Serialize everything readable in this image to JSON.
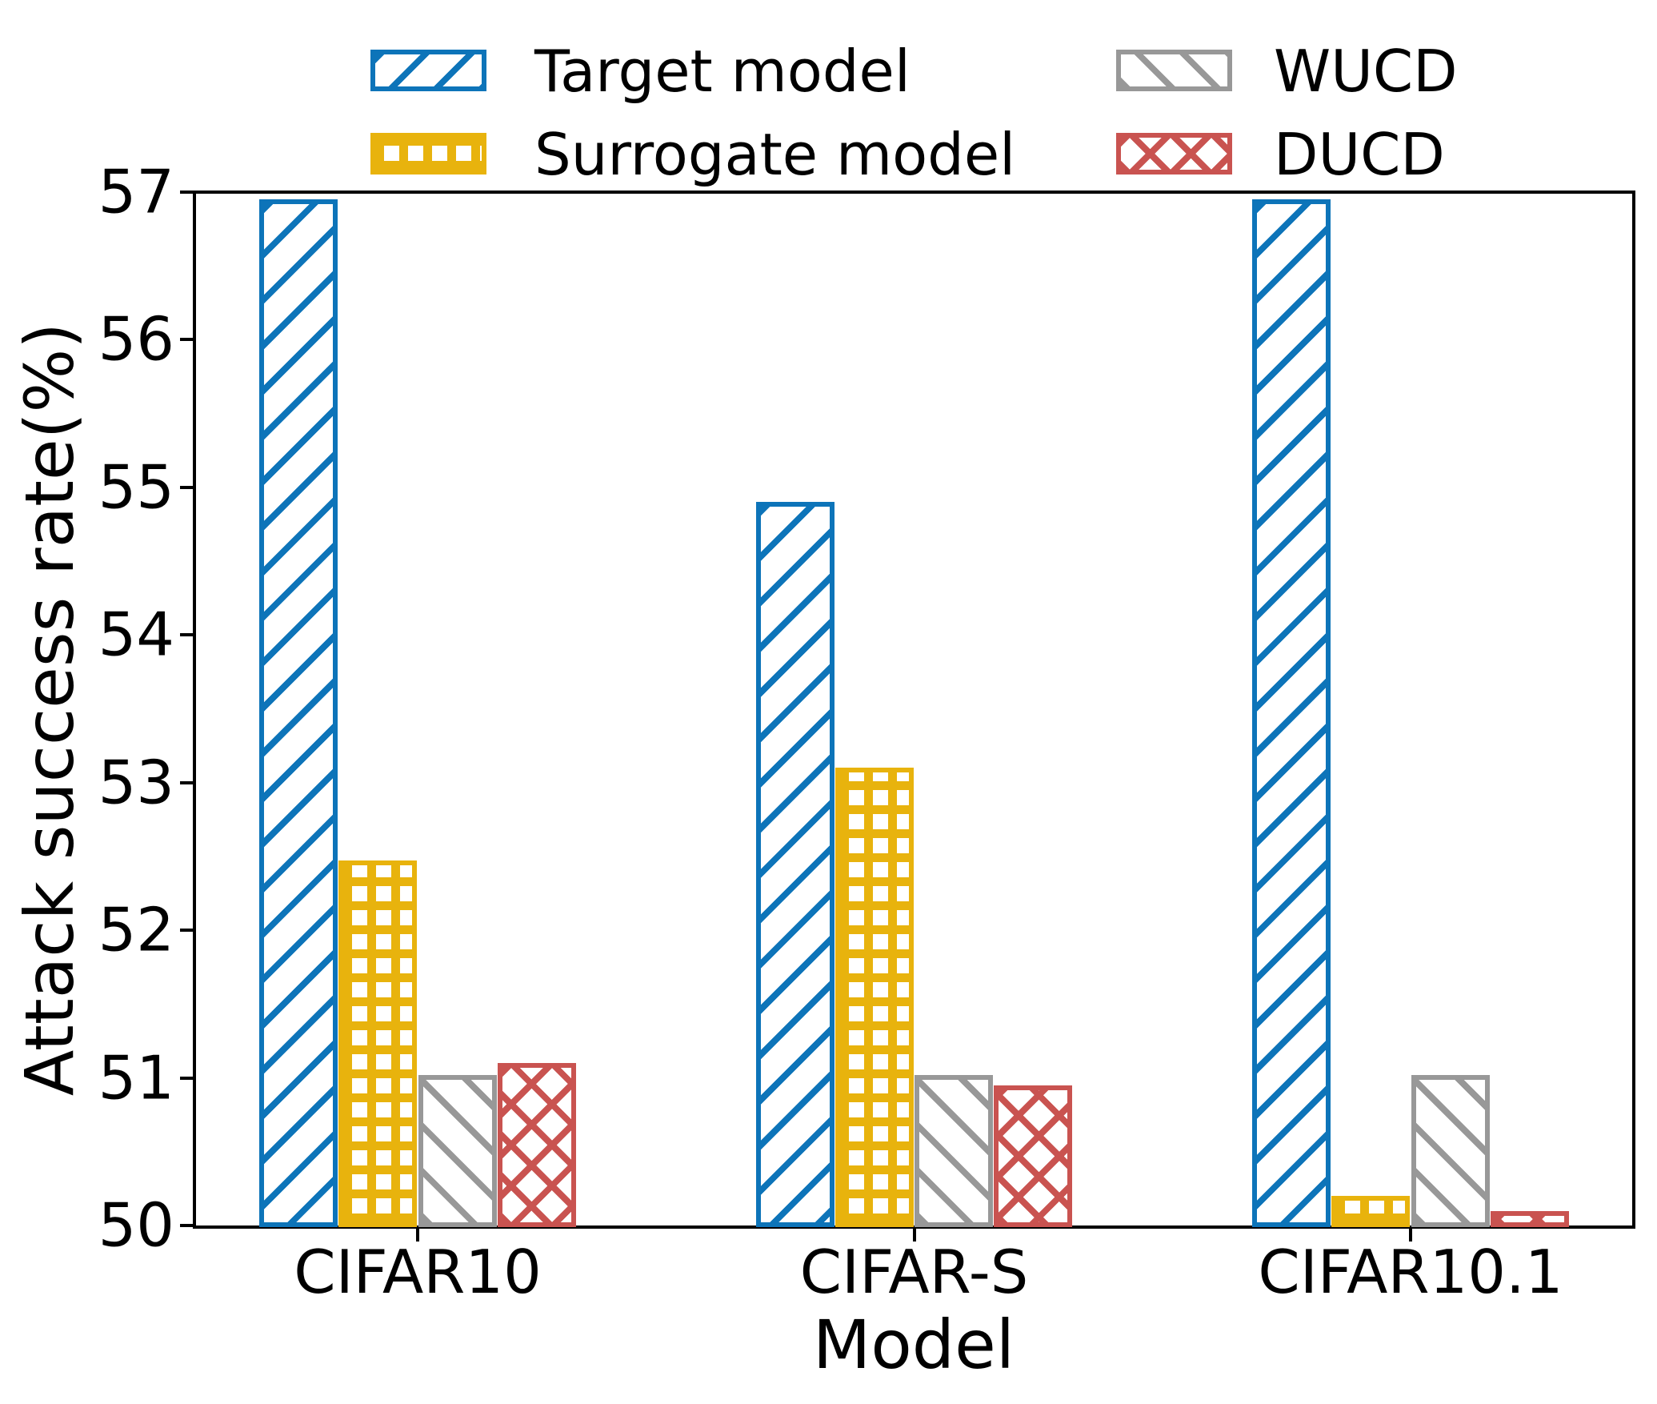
{
  "chart_data": {
    "type": "bar",
    "title": "",
    "xlabel": "Model",
    "ylabel": "Attack success rate(%)",
    "categories": [
      "CIFAR10",
      "CIFAR-S",
      "CIFAR10.1"
    ],
    "series": [
      {
        "name": "Target model",
        "color": "#0d74b9",
        "hatch": "/",
        "values": [
          56.95,
          54.9,
          56.95
        ]
      },
      {
        "name": "Surrogate model",
        "color": "#e8b30d",
        "hatch": "+",
        "values": [
          52.47,
          53.1,
          50.2
        ]
      },
      {
        "name": "WUCD",
        "color": "#989898",
        "hatch": "\\",
        "values": [
          51.02,
          51.02,
          51.02
        ]
      },
      {
        "name": "DUCD",
        "color": "#c95350",
        "hatch": "x",
        "values": [
          51.1,
          50.95,
          50.1
        ]
      }
    ],
    "ylim": [
      50,
      57
    ],
    "yticks": [
      50,
      51,
      52,
      53,
      54,
      55,
      56,
      57
    ],
    "grid": false,
    "legend_position": "top",
    "legend_frame": false,
    "bar_edge_colors_match_fill": true,
    "background_color": "#ffffff",
    "text_color": "#000000"
  }
}
